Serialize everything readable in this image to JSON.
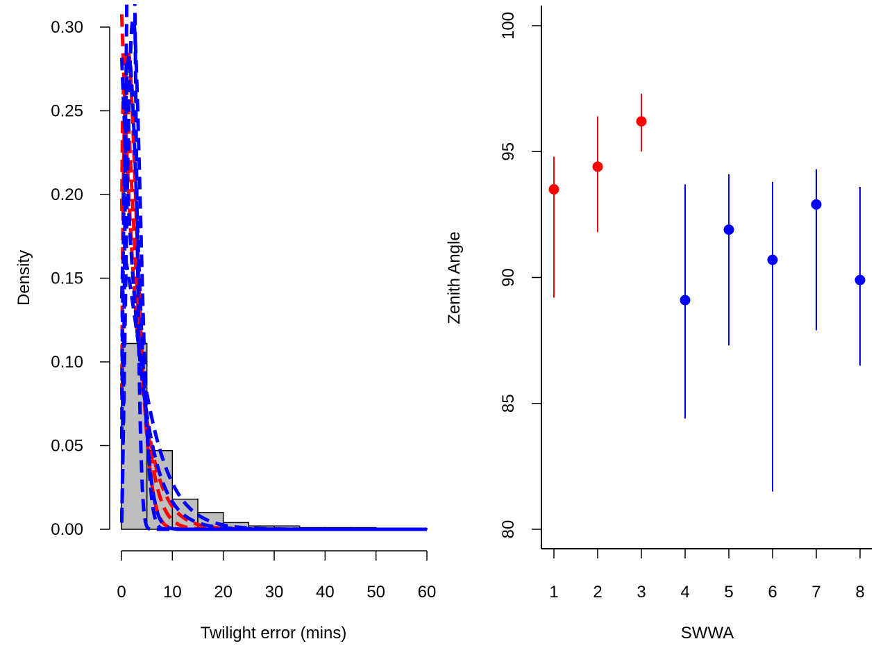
{
  "chart_data": [
    {
      "type": "bar",
      "title": "",
      "xlabel": "Twilight error (mins)",
      "ylabel": "Density",
      "xlim": [
        0,
        60
      ],
      "ylim": [
        0,
        0.31
      ],
      "x_ticks": [
        "0",
        "10",
        "20",
        "30",
        "40",
        "50",
        "60"
      ],
      "y_ticks": [
        "0.00",
        "0.05",
        "0.10",
        "0.15",
        "0.20",
        "0.25",
        "0.30"
      ],
      "bin_edges": [
        0,
        5,
        10,
        15,
        20,
        25,
        30,
        35,
        40,
        45,
        50,
        55,
        60
      ],
      "values": [
        0.111,
        0.047,
        0.018,
        0.01,
        0.004,
        0.002,
        0.002,
        0.001,
        0.001,
        0.001,
        0.0005,
        0.0005
      ],
      "bar_color": "#bebebe",
      "overlay_lines": [
        {
          "color": "#ff0000",
          "style": "dashed",
          "shape": 1.0,
          "scale": 3.2
        },
        {
          "color": "#ff0000",
          "style": "dashed",
          "shape": 1.2,
          "scale": 2.8
        },
        {
          "color": "#ff0000",
          "style": "dashed",
          "shape": 1.5,
          "scale": 2.6
        },
        {
          "color": "#0000ff",
          "style": "dashed",
          "shape": 1.0,
          "scale": 3.5
        },
        {
          "color": "#0000ff",
          "style": "dashed",
          "shape": 1.6,
          "scale": 2.7
        },
        {
          "color": "#0000ff",
          "style": "dashed",
          "shape": 2.5,
          "scale": 2.2
        },
        {
          "color": "#0000ff",
          "style": "dashed",
          "shape": 1.1,
          "scale": 5.0
        },
        {
          "color": "#0000ff",
          "style": "dashed",
          "shape": 2.2,
          "scale": 3.0
        }
      ]
    },
    {
      "type": "scatter",
      "title": "",
      "xlabel": "SWWA",
      "ylabel": "Zenith Angle",
      "xlim": [
        0.95,
        8.05
      ],
      "ylim": [
        79.2,
        100.8
      ],
      "x_ticks": [
        "1",
        "2",
        "3",
        "4",
        "5",
        "6",
        "7",
        "8"
      ],
      "y_ticks": [
        "80",
        "85",
        "90",
        "95",
        "100"
      ],
      "points": [
        {
          "x": 1,
          "y": 93.5,
          "low": 89.2,
          "high": 94.8,
          "color": "#ff0000"
        },
        {
          "x": 2,
          "y": 94.4,
          "low": 91.8,
          "high": 96.4,
          "color": "#ff0000"
        },
        {
          "x": 3,
          "y": 96.2,
          "low": 95.0,
          "high": 97.3,
          "color": "#ff0000"
        },
        {
          "x": 4,
          "y": 89.1,
          "low": 84.4,
          "high": 93.7,
          "color": "#0000ff"
        },
        {
          "x": 5,
          "y": 91.9,
          "low": 87.3,
          "high": 94.1,
          "color": "#0000ff"
        },
        {
          "x": 6,
          "y": 90.7,
          "low": 81.5,
          "high": 93.8,
          "color": "#0000ff"
        },
        {
          "x": 7,
          "y": 92.9,
          "low": 87.9,
          "high": 94.3,
          "color": "#0000ff"
        },
        {
          "x": 8,
          "y": 89.9,
          "low": 86.5,
          "high": 93.6,
          "color": "#0000ff"
        }
      ]
    }
  ]
}
